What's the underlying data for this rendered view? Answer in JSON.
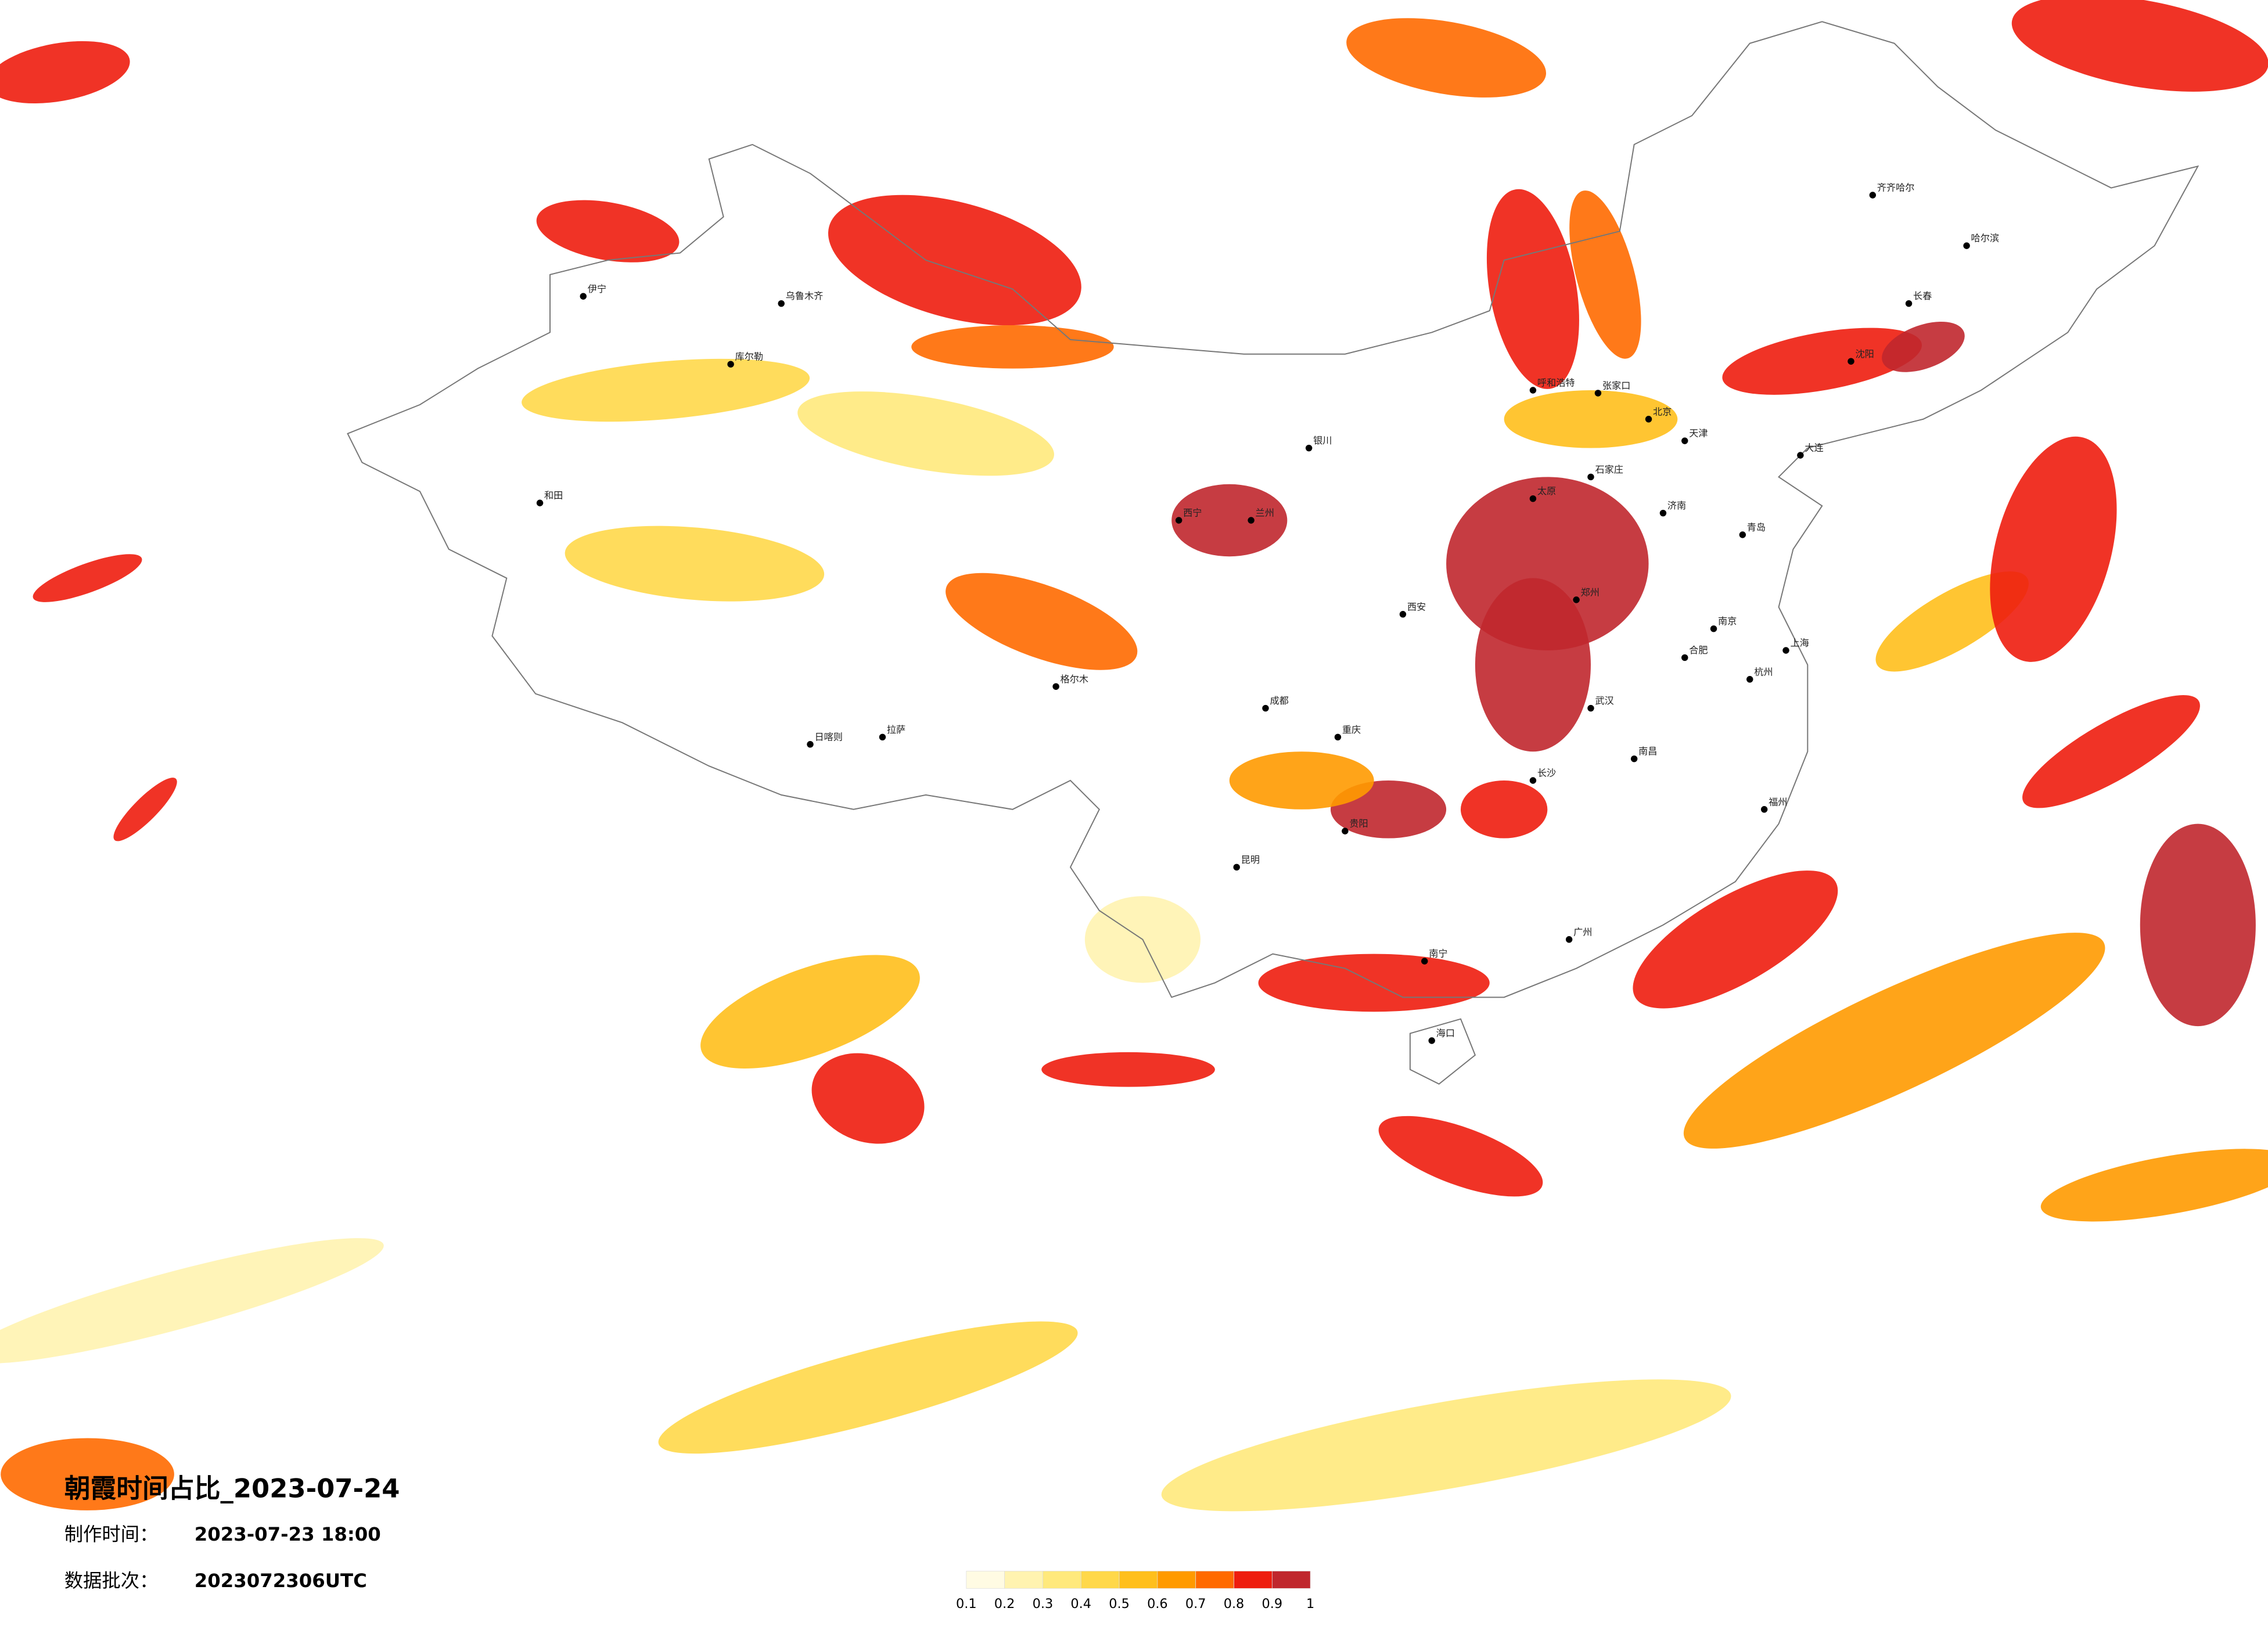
{
  "title": "朝霞时间占比_2023-07-24",
  "made_label": "制作时间：",
  "made_time": "2023-07-23 18:00",
  "batch_label": "数据批次：",
  "batch": "2023072306UTC",
  "legend": {
    "colors": [
      "#fffbe3",
      "#fff3b0",
      "#ffe97c",
      "#ffd84a",
      "#ffbf1c",
      "#ff9a00",
      "#ff6a00",
      "#ee1d0e",
      "#c0272d"
    ],
    "labels": [
      0.1,
      0.2,
      0.3,
      0.4,
      0.5,
      0.6,
      0.7,
      0.8,
      0.9,
      1
    ]
  },
  "cities": [
    "北京",
    "天津",
    "石家庄",
    "太原",
    "济南",
    "郑州",
    "西安",
    "武汉",
    "长沙",
    "南昌",
    "杭州",
    "南京",
    "上海",
    "福州",
    "广州",
    "南宁",
    "海口",
    "昆明",
    "贵阳",
    "成都",
    "重庆",
    "兰州",
    "西宁",
    "银川",
    "呼和浩特",
    "沈阳",
    "长春",
    "哈尔滨",
    "乌鲁木齐",
    "拉萨",
    "伊宁",
    "库尔勒",
    "和田",
    "日喀则",
    "格尔木",
    "张家口",
    "青岛",
    "合肥",
    "齐齐哈尔",
    "大连"
  ]
}
